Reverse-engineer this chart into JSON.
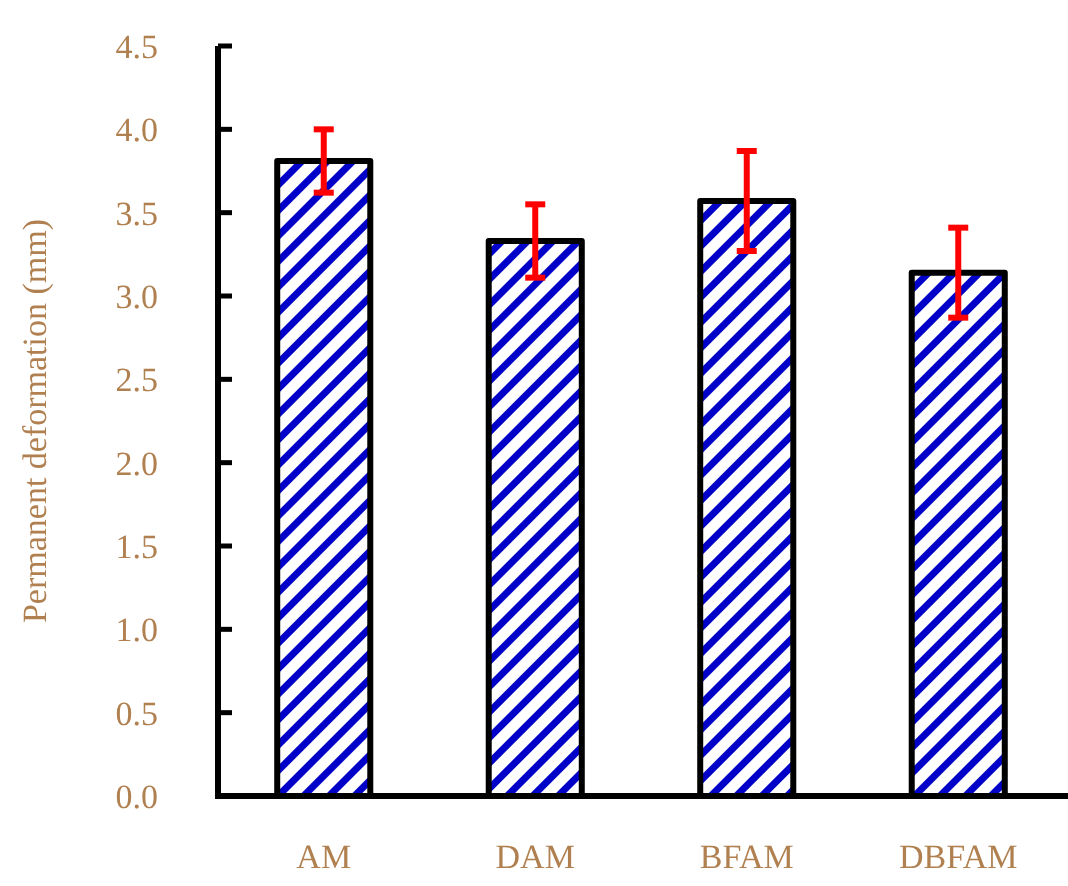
{
  "chart_data": {
    "type": "bar",
    "ylabel": "Permanent deformation (mm)",
    "categories": [
      "AM",
      "DAM",
      "BFAM",
      "DBFAM"
    ],
    "values": [
      3.81,
      3.33,
      3.57,
      3.14
    ],
    "errors": [
      0.19,
      0.22,
      0.3,
      0.27
    ],
    "color": "#0000c8",
    "ylim": [
      0,
      4.5
    ],
    "yticks": [
      {
        "value": 0,
        "label": "0.0"
      },
      {
        "value": 0.5,
        "label": "0.5"
      },
      {
        "value": 1,
        "label": "1.0"
      },
      {
        "value": 1.5,
        "label": "1.5"
      },
      {
        "value": 2,
        "label": "2.0"
      },
      {
        "value": 2.5,
        "label": "2.5"
      },
      {
        "value": 3,
        "label": "3.0"
      },
      {
        "value": 3.5,
        "label": "3.5"
      },
      {
        "value": 4,
        "label": "4.0"
      },
      {
        "value": 4.5,
        "label": "4.5"
      }
    ],
    "grid": false
  }
}
